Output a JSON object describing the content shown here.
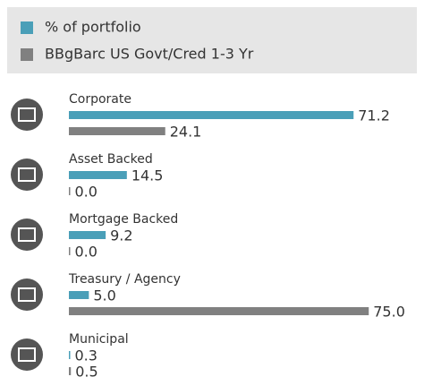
{
  "chart_data": {
    "type": "bar",
    "orientation": "horizontal",
    "categories": [
      "Corporate",
      "Asset Backed",
      "Mortgage Backed",
      "Treasury / Agency",
      "Municipal"
    ],
    "series": [
      {
        "name": "% of portfolio",
        "color": "#4a9fb8",
        "values": [
          71.2,
          14.5,
          9.2,
          5.0,
          0.3
        ],
        "value_labels": [
          "71.2",
          "14.5",
          "9.2",
          "5.0",
          "0.3"
        ]
      },
      {
        "name": "BBgBarc US Govt/Cred 1-3 Yr",
        "color": "#808080",
        "values": [
          24.1,
          0.0,
          0.0,
          75.0,
          0.5
        ],
        "value_labels": [
          "24.1",
          "0.0",
          "0.0",
          "75.0",
          "0.5"
        ]
      }
    ],
    "legend": "top"
  }
}
